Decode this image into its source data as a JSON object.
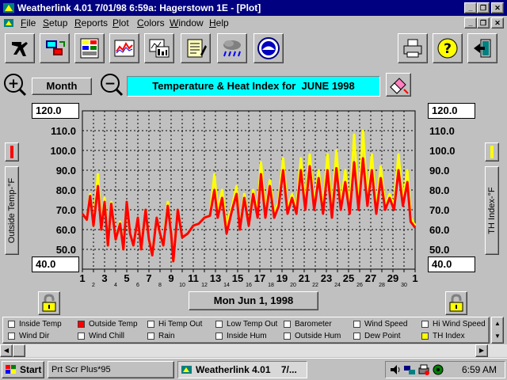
{
  "window": {
    "title": "Weatherlink 4.01    7/01/98    6:59a: Hagerstown 1E - [Plot]"
  },
  "menu": [
    "File",
    "Setup",
    "Reports",
    "Plot",
    "Colors",
    "Window",
    "Help"
  ],
  "toolbar": {
    "icons": [
      "station-icon",
      "connect-icon",
      "bulletin-icon",
      "plot-icon",
      "summary-icon",
      "notes-icon",
      "forecast-icon",
      "noaa-icon",
      "print-icon",
      "help-icon",
      "exit-icon"
    ]
  },
  "controls": {
    "zoom_in": "+",
    "zoom_out": "−",
    "period_label": "Month",
    "plot_title": "Temperature & Heat Index for  JUNE 1998",
    "date_label": "Mon Jun 1, 1998"
  },
  "axes": {
    "left_label": "Outside Temp-°F",
    "right_label": "TH Index-°F",
    "left_top": "120.0",
    "left_bottom": "40.0",
    "right_top": "120.0",
    "right_bottom": "40.0"
  },
  "legend": [
    {
      "label": "Inside Temp",
      "color": "#ffffff"
    },
    {
      "label": "Outside Temp",
      "color": "#ff0000"
    },
    {
      "label": "Hi Temp Out",
      "color": "#ffffff"
    },
    {
      "label": "Low Temp Out",
      "color": "#ffffff"
    },
    {
      "label": "Barometer",
      "color": "#ffffff"
    },
    {
      "label": "Wind Speed",
      "color": "#ffffff"
    },
    {
      "label": "Hi Wind Speed",
      "color": "#ffffff"
    },
    {
      "label": "Wind Dir",
      "color": "#ffffff"
    },
    {
      "label": "Wind Chill",
      "color": "#ffffff"
    },
    {
      "label": "Rain",
      "color": "#ffffff"
    },
    {
      "label": "Inside Hum",
      "color": "#ffffff"
    },
    {
      "label": "Outside Hum",
      "color": "#ffffff"
    },
    {
      "label": "Dew Point",
      "color": "#ffffff"
    },
    {
      "label": "TH Index",
      "color": "#ffff00"
    }
  ],
  "taskbar": {
    "start_label": "Start",
    "tasks": [
      "Prt Scr Plus*95",
      "Weatherlink 4.01    7/..."
    ],
    "clock": "6:59 AM"
  },
  "chart_data": {
    "type": "line",
    "ylim": [
      40,
      120
    ],
    "y_ticks": [
      "40.0",
      "50.0",
      "60.0",
      "70.0",
      "80.0",
      "90.0",
      "100.0",
      "110.0",
      "120.0"
    ],
    "x_ticks": [
      "1",
      "3",
      "5",
      "7",
      "9",
      "11",
      "13",
      "15",
      "17",
      "19",
      "21",
      "23",
      "25",
      "27",
      "29",
      "1"
    ],
    "x_ticks_small": [
      "2",
      "4",
      "6",
      "8",
      "10",
      "12",
      "14",
      "16",
      "18",
      "20",
      "22",
      "24",
      "26",
      "28",
      "30"
    ],
    "xlim": [
      1,
      31
    ],
    "grid": true,
    "series": [
      {
        "name": "TH Index",
        "color": "#ffff00",
        "points": [
          [
            1,
            68
          ],
          [
            1.4,
            65
          ],
          [
            1.7,
            78
          ],
          [
            2,
            62
          ],
          [
            2.4,
            88
          ],
          [
            2.7,
            60
          ],
          [
            3,
            76
          ],
          [
            3.3,
            52
          ],
          [
            3.6,
            74
          ],
          [
            4,
            55
          ],
          [
            4.4,
            64
          ],
          [
            4.7,
            50
          ],
          [
            5,
            74
          ],
          [
            5.3,
            58
          ],
          [
            5.6,
            52
          ],
          [
            6,
            66
          ],
          [
            6.3,
            50
          ],
          [
            6.7,
            70
          ],
          [
            7,
            55
          ],
          [
            7.3,
            47
          ],
          [
            7.7,
            66
          ],
          [
            8,
            58
          ],
          [
            8.3,
            52
          ],
          [
            8.7,
            74
          ],
          [
            9,
            58
          ],
          [
            9.2,
            44
          ],
          [
            9.6,
            70
          ],
          [
            10,
            56
          ],
          [
            10.5,
            58
          ],
          [
            11,
            62
          ],
          [
            11.5,
            63
          ],
          [
            12,
            66
          ],
          [
            12.5,
            67
          ],
          [
            12.9,
            88
          ],
          [
            13.2,
            70
          ],
          [
            13.6,
            80
          ],
          [
            14,
            62
          ],
          [
            14.5,
            72
          ],
          [
            14.9,
            82
          ],
          [
            15.2,
            60
          ],
          [
            15.6,
            78
          ],
          [
            16,
            62
          ],
          [
            16.4,
            80
          ],
          [
            16.8,
            68
          ],
          [
            17.1,
            94
          ],
          [
            17.5,
            68
          ],
          [
            17.9,
            85
          ],
          [
            18.3,
            68
          ],
          [
            18.7,
            74
          ],
          [
            19.1,
            96
          ],
          [
            19.5,
            70
          ],
          [
            19.9,
            78
          ],
          [
            20.3,
            70
          ],
          [
            20.7,
            96
          ],
          [
            21.1,
            72
          ],
          [
            21.5,
            98
          ],
          [
            21.9,
            72
          ],
          [
            22.3,
            90
          ],
          [
            22.7,
            70
          ],
          [
            23.1,
            98
          ],
          [
            23.5,
            68
          ],
          [
            23.9,
            100
          ],
          [
            24.3,
            72
          ],
          [
            24.7,
            90
          ],
          [
            25.1,
            70
          ],
          [
            25.5,
            108
          ],
          [
            25.9,
            72
          ],
          [
            26.3,
            110
          ],
          [
            26.7,
            74
          ],
          [
            27.1,
            98
          ],
          [
            27.5,
            70
          ],
          [
            27.9,
            92
          ],
          [
            28.3,
            72
          ],
          [
            28.7,
            78
          ],
          [
            29.1,
            72
          ],
          [
            29.5,
            98
          ],
          [
            29.9,
            74
          ],
          [
            30.3,
            90
          ],
          [
            30.6,
            66
          ],
          [
            31,
            62
          ]
        ]
      },
      {
        "name": "Outside Temp",
        "color": "#ff0000",
        "points": [
          [
            1,
            68
          ],
          [
            1.4,
            65
          ],
          [
            1.7,
            77
          ],
          [
            2,
            62
          ],
          [
            2.4,
            82
          ],
          [
            2.7,
            60
          ],
          [
            3,
            74
          ],
          [
            3.3,
            52
          ],
          [
            3.6,
            73
          ],
          [
            4,
            55
          ],
          [
            4.4,
            63
          ],
          [
            4.7,
            50
          ],
          [
            5,
            74
          ],
          [
            5.3,
            58
          ],
          [
            5.6,
            52
          ],
          [
            6,
            66
          ],
          [
            6.3,
            50
          ],
          [
            6.7,
            70
          ],
          [
            7,
            55
          ],
          [
            7.3,
            47
          ],
          [
            7.7,
            66
          ],
          [
            8,
            58
          ],
          [
            8.3,
            52
          ],
          [
            8.7,
            72
          ],
          [
            9,
            58
          ],
          [
            9.2,
            44
          ],
          [
            9.6,
            70
          ],
          [
            10,
            56
          ],
          [
            10.5,
            58
          ],
          [
            11,
            62
          ],
          [
            11.5,
            63
          ],
          [
            12,
            66
          ],
          [
            12.5,
            67
          ],
          [
            12.9,
            80
          ],
          [
            13.2,
            66
          ],
          [
            13.6,
            76
          ],
          [
            14,
            58
          ],
          [
            14.5,
            70
          ],
          [
            14.9,
            78
          ],
          [
            15.2,
            60
          ],
          [
            15.6,
            76
          ],
          [
            16,
            62
          ],
          [
            16.4,
            78
          ],
          [
            16.8,
            66
          ],
          [
            17.1,
            88
          ],
          [
            17.5,
            66
          ],
          [
            17.9,
            82
          ],
          [
            18.3,
            66
          ],
          [
            18.7,
            72
          ],
          [
            19.1,
            90
          ],
          [
            19.5,
            68
          ],
          [
            19.9,
            76
          ],
          [
            20.3,
            68
          ],
          [
            20.7,
            90
          ],
          [
            21.1,
            70
          ],
          [
            21.5,
            92
          ],
          [
            21.9,
            70
          ],
          [
            22.3,
            86
          ],
          [
            22.7,
            68
          ],
          [
            23.1,
            90
          ],
          [
            23.5,
            66
          ],
          [
            23.9,
            91
          ],
          [
            24.3,
            70
          ],
          [
            24.7,
            84
          ],
          [
            25.1,
            68
          ],
          [
            25.5,
            94
          ],
          [
            25.9,
            70
          ],
          [
            26.3,
            96
          ],
          [
            26.7,
            72
          ],
          [
            27.1,
            90
          ],
          [
            27.5,
            68
          ],
          [
            27.9,
            86
          ],
          [
            28.3,
            70
          ],
          [
            28.7,
            76
          ],
          [
            29.1,
            70
          ],
          [
            29.5,
            90
          ],
          [
            29.9,
            72
          ],
          [
            30.3,
            84
          ],
          [
            30.6,
            64
          ],
          [
            31,
            61
          ]
        ]
      }
    ]
  }
}
